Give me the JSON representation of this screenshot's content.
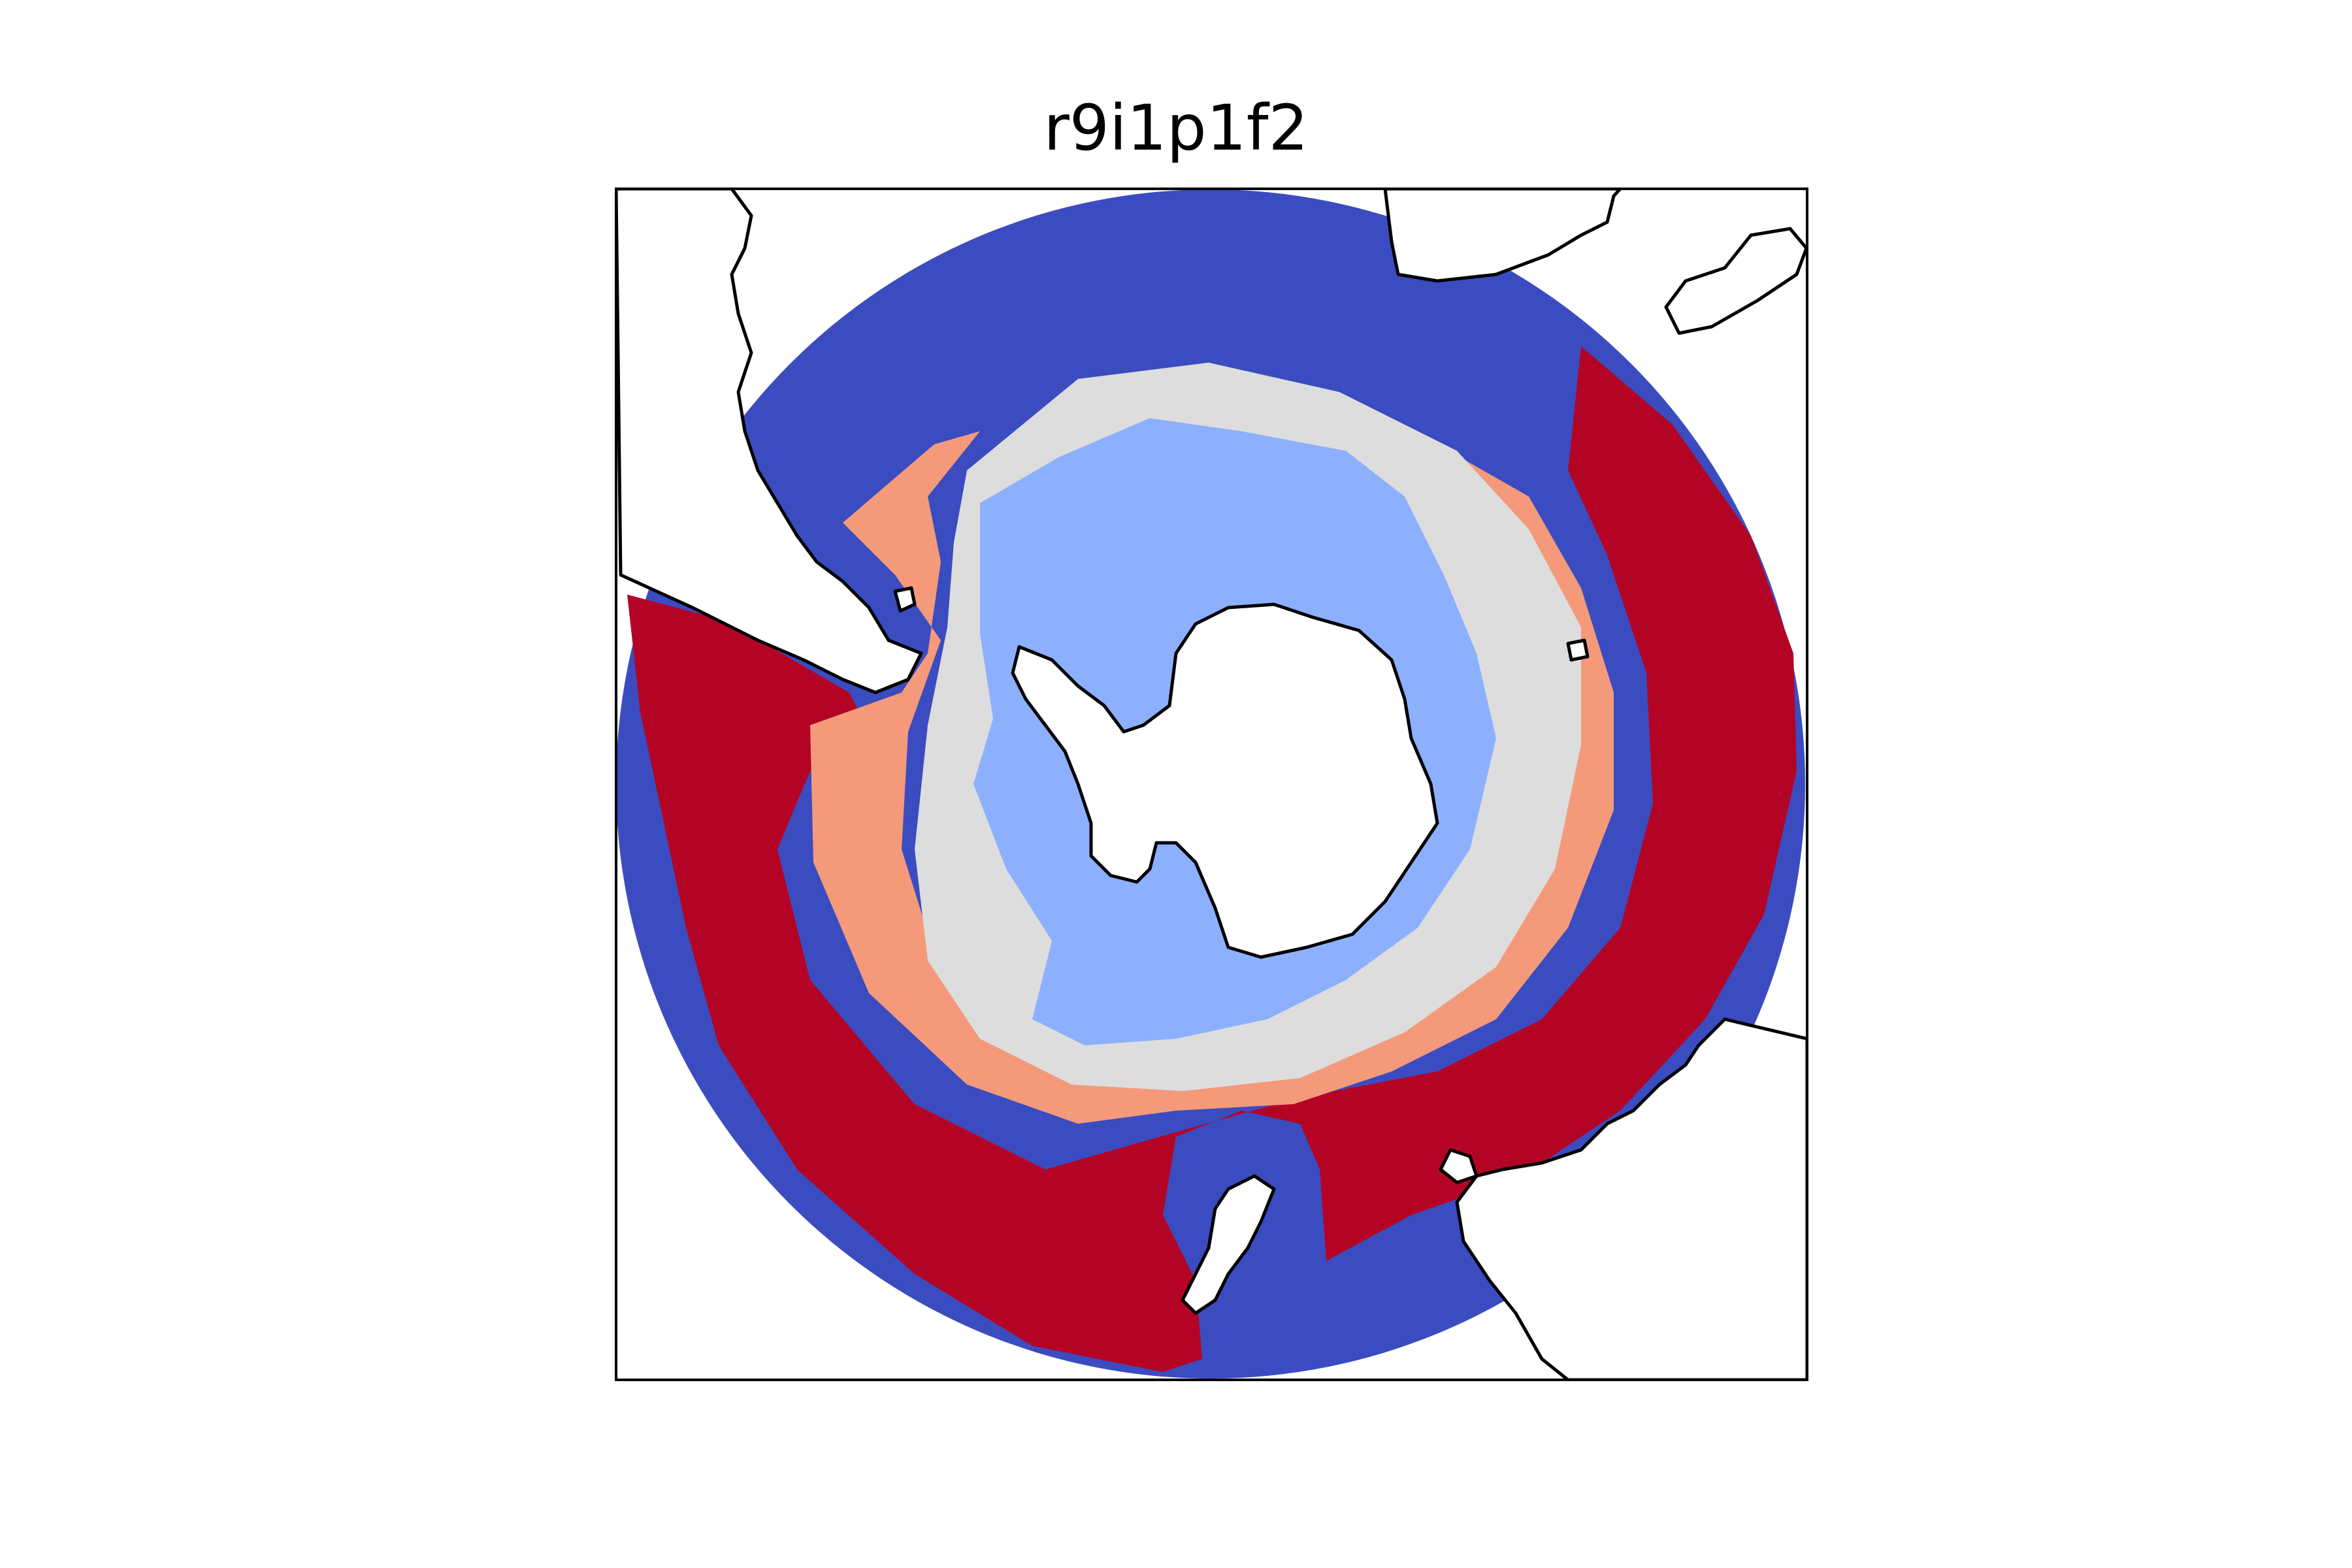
{
  "title": "r9i1p1f2",
  "map": {
    "projection": "south-polar-stereographic",
    "field_colors": {
      "strong_positive": "#b40426",
      "weak_positive": "#f49a7b",
      "neutral": "#dddddd",
      "weak_negative": "#8db0fe",
      "strong_negative": "#3b4cc0",
      "land": "#ffffff",
      "coastline": "#000000"
    },
    "zones_center_to_edge": [
      "land",
      "weak_negative",
      "neutral",
      "weak_positive",
      "strong_positive",
      "strong_negative"
    ]
  }
}
